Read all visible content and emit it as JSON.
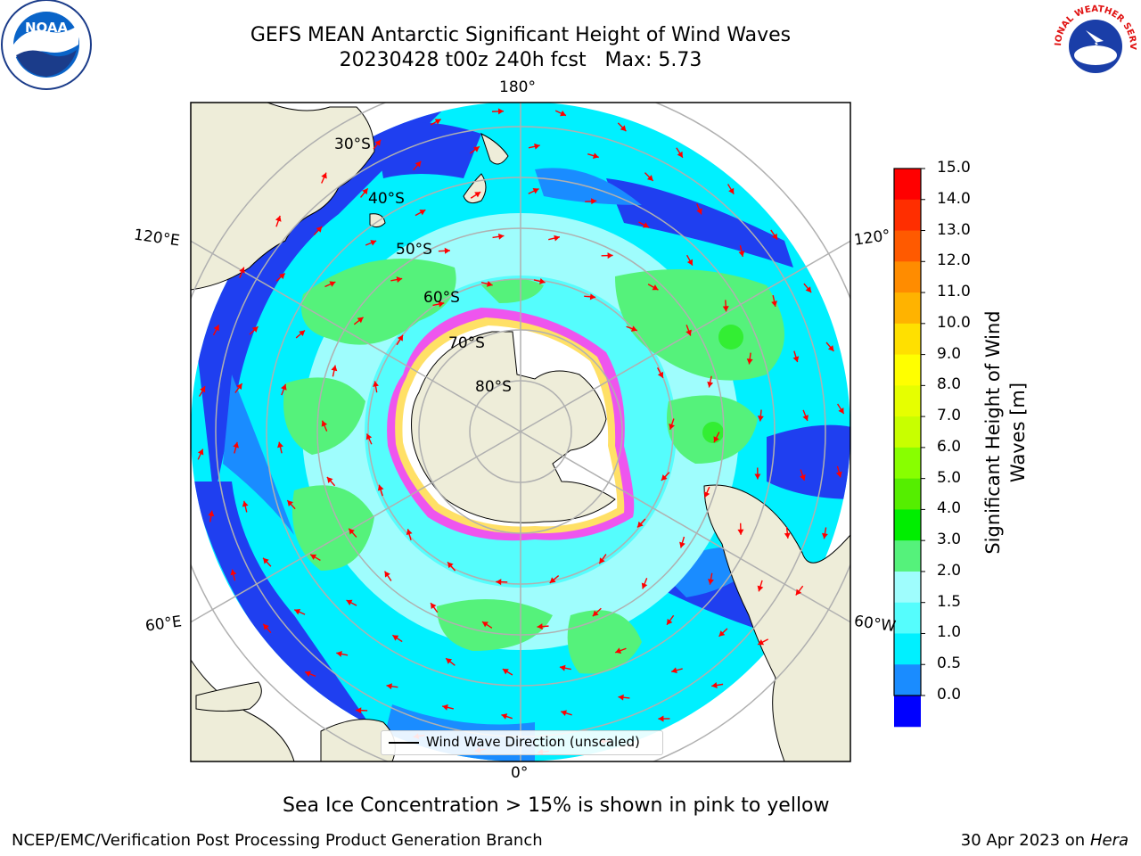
{
  "header": {
    "title_line1": "GEFS MEAN Antarctic Significant Height of Wind Waves",
    "title_line2": "20230428 t00z 240h fcst   Max: 5.73"
  },
  "logos": {
    "noaa_text": "NOAA",
    "nws_text": "NATIONAL WEATHER SERVICE"
  },
  "map": {
    "longitude_labels": {
      "top": "180°",
      "bottom": "0°",
      "upper_left": "120°E",
      "upper_right": "120°",
      "lower_left": "60°E",
      "lower_right": "60°W"
    },
    "latitude_labels": [
      "30°S",
      "40°S",
      "50°S",
      "60°S",
      "70°S",
      "80°S"
    ],
    "legend": {
      "label": "Wind Wave Direction (unscaled)"
    },
    "colors": {
      "land": "#eeedd9",
      "ocean_deep_blue": "#1f3ff0",
      "ocean_blue": "#1a8cff",
      "ocean_cyan": "#00f0ff",
      "ocean_light_cyan": "#9ffdfd",
      "ocean_green": "#55f27b",
      "sea_ice_pink": "#ee55ee",
      "arrow": "#ff0000"
    }
  },
  "colorbar": {
    "ticks": [
      "15.0",
      "14.0",
      "13.0",
      "12.0",
      "11.0",
      "10.0",
      "9.0",
      "8.0",
      "7.0",
      "6.0",
      "5.0",
      "4.0",
      "3.0",
      "2.0",
      "1.5",
      "1.0",
      "0.5",
      "0.0"
    ],
    "colors": [
      "#ff0000",
      "#ff2e00",
      "#ff5a00",
      "#ff8c00",
      "#ffb300",
      "#ffe000",
      "#ffff00",
      "#e6ff00",
      "#c8ff00",
      "#88ff00",
      "#55ee00",
      "#00ee00",
      "#55f27b",
      "#9ffdfd",
      "#55fdfd",
      "#00f0ff",
      "#1a8cff",
      "#0000ff"
    ],
    "title": "Significant Height of Wind\nWaves [m]"
  },
  "footnote": "Sea Ice Concentration > 15% is shown in pink to yellow",
  "footer": {
    "left": "NCEP/EMC/Verification Post Processing Product Generation Branch",
    "right_date": "30 Apr 2023 on ",
    "right_host": "Hera"
  }
}
